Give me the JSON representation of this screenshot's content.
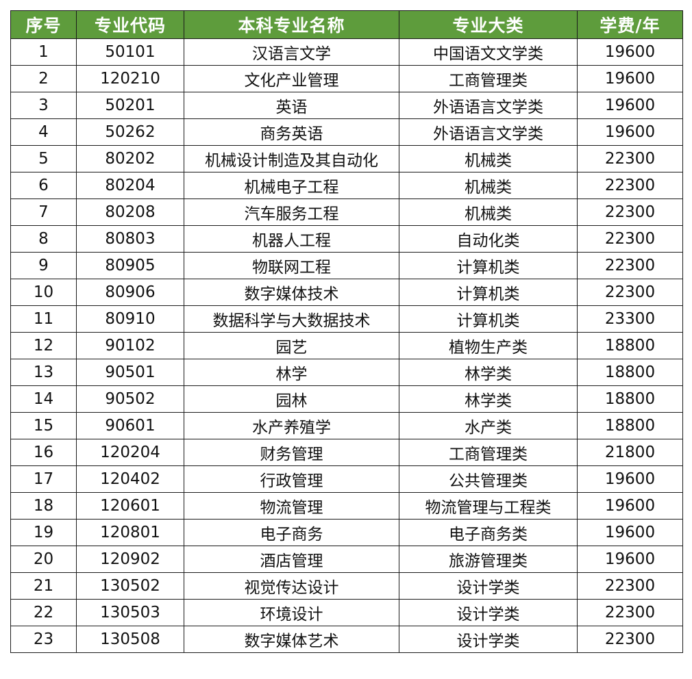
{
  "table": {
    "header_bg": "#5e9c3c",
    "headers": [
      "序号",
      "专业代码",
      "本科专业名称",
      "专业大类",
      "学费/年"
    ],
    "rows": [
      [
        "1",
        "50101",
        "汉语言文学",
        "中国语文文学类",
        "19600"
      ],
      [
        "2",
        "120210",
        "文化产业管理",
        "工商管理类",
        "19600"
      ],
      [
        "3",
        "50201",
        "英语",
        "外语语言文学类",
        "19600"
      ],
      [
        "4",
        "50262",
        "商务英语",
        "外语语言文学类",
        "19600"
      ],
      [
        "5",
        "80202",
        "机械设计制造及其自动化",
        "机械类",
        "22300"
      ],
      [
        "6",
        "80204",
        "机械电子工程",
        "机械类",
        "22300"
      ],
      [
        "7",
        "80208",
        "汽车服务工程",
        "机械类",
        "22300"
      ],
      [
        "8",
        "80803",
        "机器人工程",
        "自动化类",
        "22300"
      ],
      [
        "9",
        "80905",
        "物联网工程",
        "计算机类",
        "22300"
      ],
      [
        "10",
        "80906",
        "数字媒体技术",
        "计算机类",
        "22300"
      ],
      [
        "11",
        "80910",
        "数据科学与大数据技术",
        "计算机类",
        "23300"
      ],
      [
        "12",
        "90102",
        "园艺",
        "植物生产类",
        "18800"
      ],
      [
        "13",
        "90501",
        "林学",
        "林学类",
        "18800"
      ],
      [
        "14",
        "90502",
        "园林",
        "林学类",
        "18800"
      ],
      [
        "15",
        "90601",
        "水产养殖学",
        "水产类",
        "18800"
      ],
      [
        "16",
        "120204",
        "财务管理",
        "工商管理类",
        "21800"
      ],
      [
        "17",
        "120402",
        "行政管理",
        "公共管理类",
        "19600"
      ],
      [
        "18",
        "120601",
        "物流管理",
        "物流管理与工程类",
        "19600"
      ],
      [
        "19",
        "120801",
        "电子商务",
        "电子商务类",
        "19600"
      ],
      [
        "20",
        "120902",
        "酒店管理",
        "旅游管理类",
        "19600"
      ],
      [
        "21",
        "130502",
        "视觉传达设计",
        "设计学类",
        "22300"
      ],
      [
        "22",
        "130503",
        "环境设计",
        "设计学类",
        "22300"
      ],
      [
        "23",
        "130508",
        "数字媒体艺术",
        "设计学类",
        "22300"
      ]
    ]
  }
}
